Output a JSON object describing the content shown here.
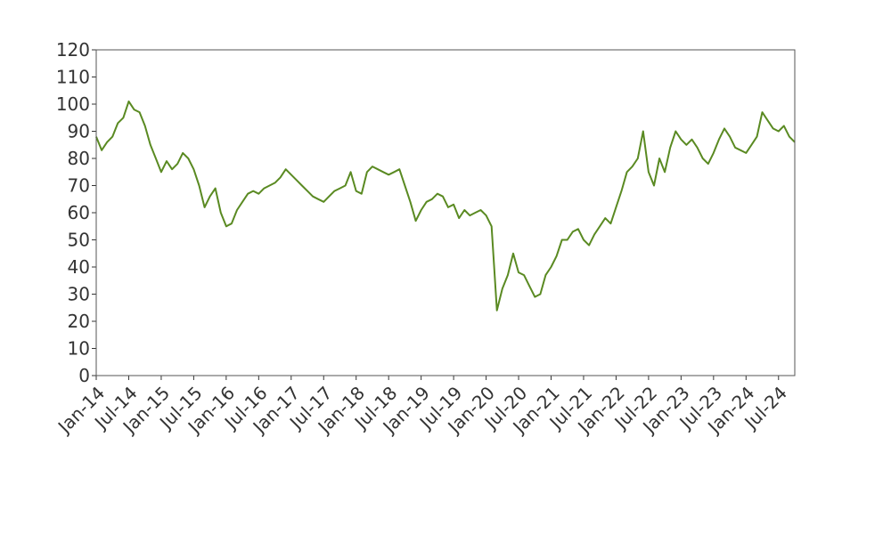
{
  "chart_data": {
    "type": "line",
    "title": "",
    "xlabel": "",
    "ylabel": "",
    "ylim": [
      0,
      120
    ],
    "yticks": [
      0,
      10,
      20,
      30,
      40,
      50,
      60,
      70,
      80,
      90,
      100,
      110,
      120
    ],
    "xlim": [
      "2014-01",
      "2024-10"
    ],
    "xticks": [
      {
        "date": "2014-01",
        "label": "Jan-14"
      },
      {
        "date": "2014-07",
        "label": "Jul-14"
      },
      {
        "date": "2015-01",
        "label": "Jan-15"
      },
      {
        "date": "2015-07",
        "label": "Jul-15"
      },
      {
        "date": "2016-01",
        "label": "Jan-16"
      },
      {
        "date": "2016-07",
        "label": "Jul-16"
      },
      {
        "date": "2017-01",
        "label": "Jan-17"
      },
      {
        "date": "2017-07",
        "label": "Jul-17"
      },
      {
        "date": "2018-01",
        "label": "Jan-18"
      },
      {
        "date": "2018-07",
        "label": "Jul-18"
      },
      {
        "date": "2019-01",
        "label": "Jan-19"
      },
      {
        "date": "2019-07",
        "label": "Jul-19"
      },
      {
        "date": "2020-01",
        "label": "Jan-20"
      },
      {
        "date": "2020-07",
        "label": "Jul-20"
      },
      {
        "date": "2021-01",
        "label": "Jan-21"
      },
      {
        "date": "2021-07",
        "label": "Jul-21"
      },
      {
        "date": "2022-01",
        "label": "Jan-22"
      },
      {
        "date": "2022-07",
        "label": "Jul-22"
      },
      {
        "date": "2023-01",
        "label": "Jan-23"
      },
      {
        "date": "2023-07",
        "label": "Jul-23"
      },
      {
        "date": "2024-01",
        "label": "Jan-24"
      },
      {
        "date": "2024-07",
        "label": "Jul-24"
      }
    ],
    "grid": false,
    "legend": "none",
    "series": [
      {
        "color": "#5a8a22",
        "points": [
          [
            "2014-01",
            88
          ],
          [
            "2014-02",
            83
          ],
          [
            "2014-03",
            86
          ],
          [
            "2014-04",
            88
          ],
          [
            "2014-05",
            93
          ],
          [
            "2014-06",
            95
          ],
          [
            "2014-07",
            101
          ],
          [
            "2014-08",
            98
          ],
          [
            "2014-09",
            97
          ],
          [
            "2014-10",
            92
          ],
          [
            "2014-11",
            85
          ],
          [
            "2014-12",
            80
          ],
          [
            "2015-01",
            75
          ],
          [
            "2015-02",
            79
          ],
          [
            "2015-03",
            76
          ],
          [
            "2015-04",
            78
          ],
          [
            "2015-05",
            82
          ],
          [
            "2015-06",
            80
          ],
          [
            "2015-07",
            76
          ],
          [
            "2015-08",
            70
          ],
          [
            "2015-09",
            62
          ],
          [
            "2015-10",
            66
          ],
          [
            "2015-11",
            69
          ],
          [
            "2015-12",
            60
          ],
          [
            "2016-01",
            55
          ],
          [
            "2016-02",
            56
          ],
          [
            "2016-03",
            61
          ],
          [
            "2016-04",
            64
          ],
          [
            "2016-05",
            67
          ],
          [
            "2016-06",
            68
          ],
          [
            "2016-07",
            67
          ],
          [
            "2016-08",
            69
          ],
          [
            "2016-09",
            70
          ],
          [
            "2016-10",
            71
          ],
          [
            "2016-11",
            73
          ],
          [
            "2016-12",
            76
          ],
          [
            "2017-01",
            74
          ],
          [
            "2017-02",
            72
          ],
          [
            "2017-03",
            70
          ],
          [
            "2017-04",
            68
          ],
          [
            "2017-05",
            66
          ],
          [
            "2017-06",
            65
          ],
          [
            "2017-07",
            64
          ],
          [
            "2017-08",
            66
          ],
          [
            "2017-09",
            68
          ],
          [
            "2017-10",
            69
          ],
          [
            "2017-11",
            70
          ],
          [
            "2017-12",
            75
          ],
          [
            "2018-01",
            68
          ],
          [
            "2018-02",
            67
          ],
          [
            "2018-03",
            75
          ],
          [
            "2018-04",
            77
          ],
          [
            "2018-05",
            76
          ],
          [
            "2018-06",
            75
          ],
          [
            "2018-07",
            74
          ],
          [
            "2018-08",
            75
          ],
          [
            "2018-09",
            76
          ],
          [
            "2018-10",
            70
          ],
          [
            "2018-11",
            64
          ],
          [
            "2018-12",
            57
          ],
          [
            "2019-01",
            61
          ],
          [
            "2019-02",
            64
          ],
          [
            "2019-03",
            65
          ],
          [
            "2019-04",
            67
          ],
          [
            "2019-05",
            66
          ],
          [
            "2019-06",
            62
          ],
          [
            "2019-07",
            63
          ],
          [
            "2019-08",
            58
          ],
          [
            "2019-09",
            61
          ],
          [
            "2019-10",
            59
          ],
          [
            "2019-11",
            60
          ],
          [
            "2019-12",
            61
          ],
          [
            "2020-01",
            59
          ],
          [
            "2020-02",
            55
          ],
          [
            "2020-03",
            24
          ],
          [
            "2020-04",
            32
          ],
          [
            "2020-05",
            37
          ],
          [
            "2020-06",
            45
          ],
          [
            "2020-07",
            38
          ],
          [
            "2020-08",
            37
          ],
          [
            "2020-09",
            33
          ],
          [
            "2020-10",
            29
          ],
          [
            "2020-11",
            30
          ],
          [
            "2020-12",
            37
          ],
          [
            "2021-01",
            40
          ],
          [
            "2021-02",
            44
          ],
          [
            "2021-03",
            50
          ],
          [
            "2021-04",
            50
          ],
          [
            "2021-05",
            53
          ],
          [
            "2021-06",
            54
          ],
          [
            "2021-07",
            50
          ],
          [
            "2021-08",
            48
          ],
          [
            "2021-09",
            52
          ],
          [
            "2021-10",
            55
          ],
          [
            "2021-11",
            58
          ],
          [
            "2021-12",
            56
          ],
          [
            "2022-01",
            62
          ],
          [
            "2022-02",
            68
          ],
          [
            "2022-03",
            75
          ],
          [
            "2022-04",
            77
          ],
          [
            "2022-05",
            80
          ],
          [
            "2022-06",
            90
          ],
          [
            "2022-07",
            75
          ],
          [
            "2022-08",
            70
          ],
          [
            "2022-09",
            80
          ],
          [
            "2022-10",
            75
          ],
          [
            "2022-11",
            84
          ],
          [
            "2022-12",
            90
          ],
          [
            "2023-01",
            87
          ],
          [
            "2023-02",
            85
          ],
          [
            "2023-03",
            87
          ],
          [
            "2023-04",
            84
          ],
          [
            "2023-05",
            80
          ],
          [
            "2023-06",
            78
          ],
          [
            "2023-07",
            82
          ],
          [
            "2023-08",
            87
          ],
          [
            "2023-09",
            91
          ],
          [
            "2023-10",
            88
          ],
          [
            "2023-11",
            84
          ],
          [
            "2023-12",
            83
          ],
          [
            "2024-01",
            82
          ],
          [
            "2024-02",
            85
          ],
          [
            "2024-03",
            88
          ],
          [
            "2024-04",
            97
          ],
          [
            "2024-05",
            94
          ],
          [
            "2024-06",
            91
          ],
          [
            "2024-07",
            90
          ],
          [
            "2024-08",
            92
          ],
          [
            "2024-09",
            88
          ],
          [
            "2024-10",
            86
          ]
        ]
      }
    ]
  }
}
